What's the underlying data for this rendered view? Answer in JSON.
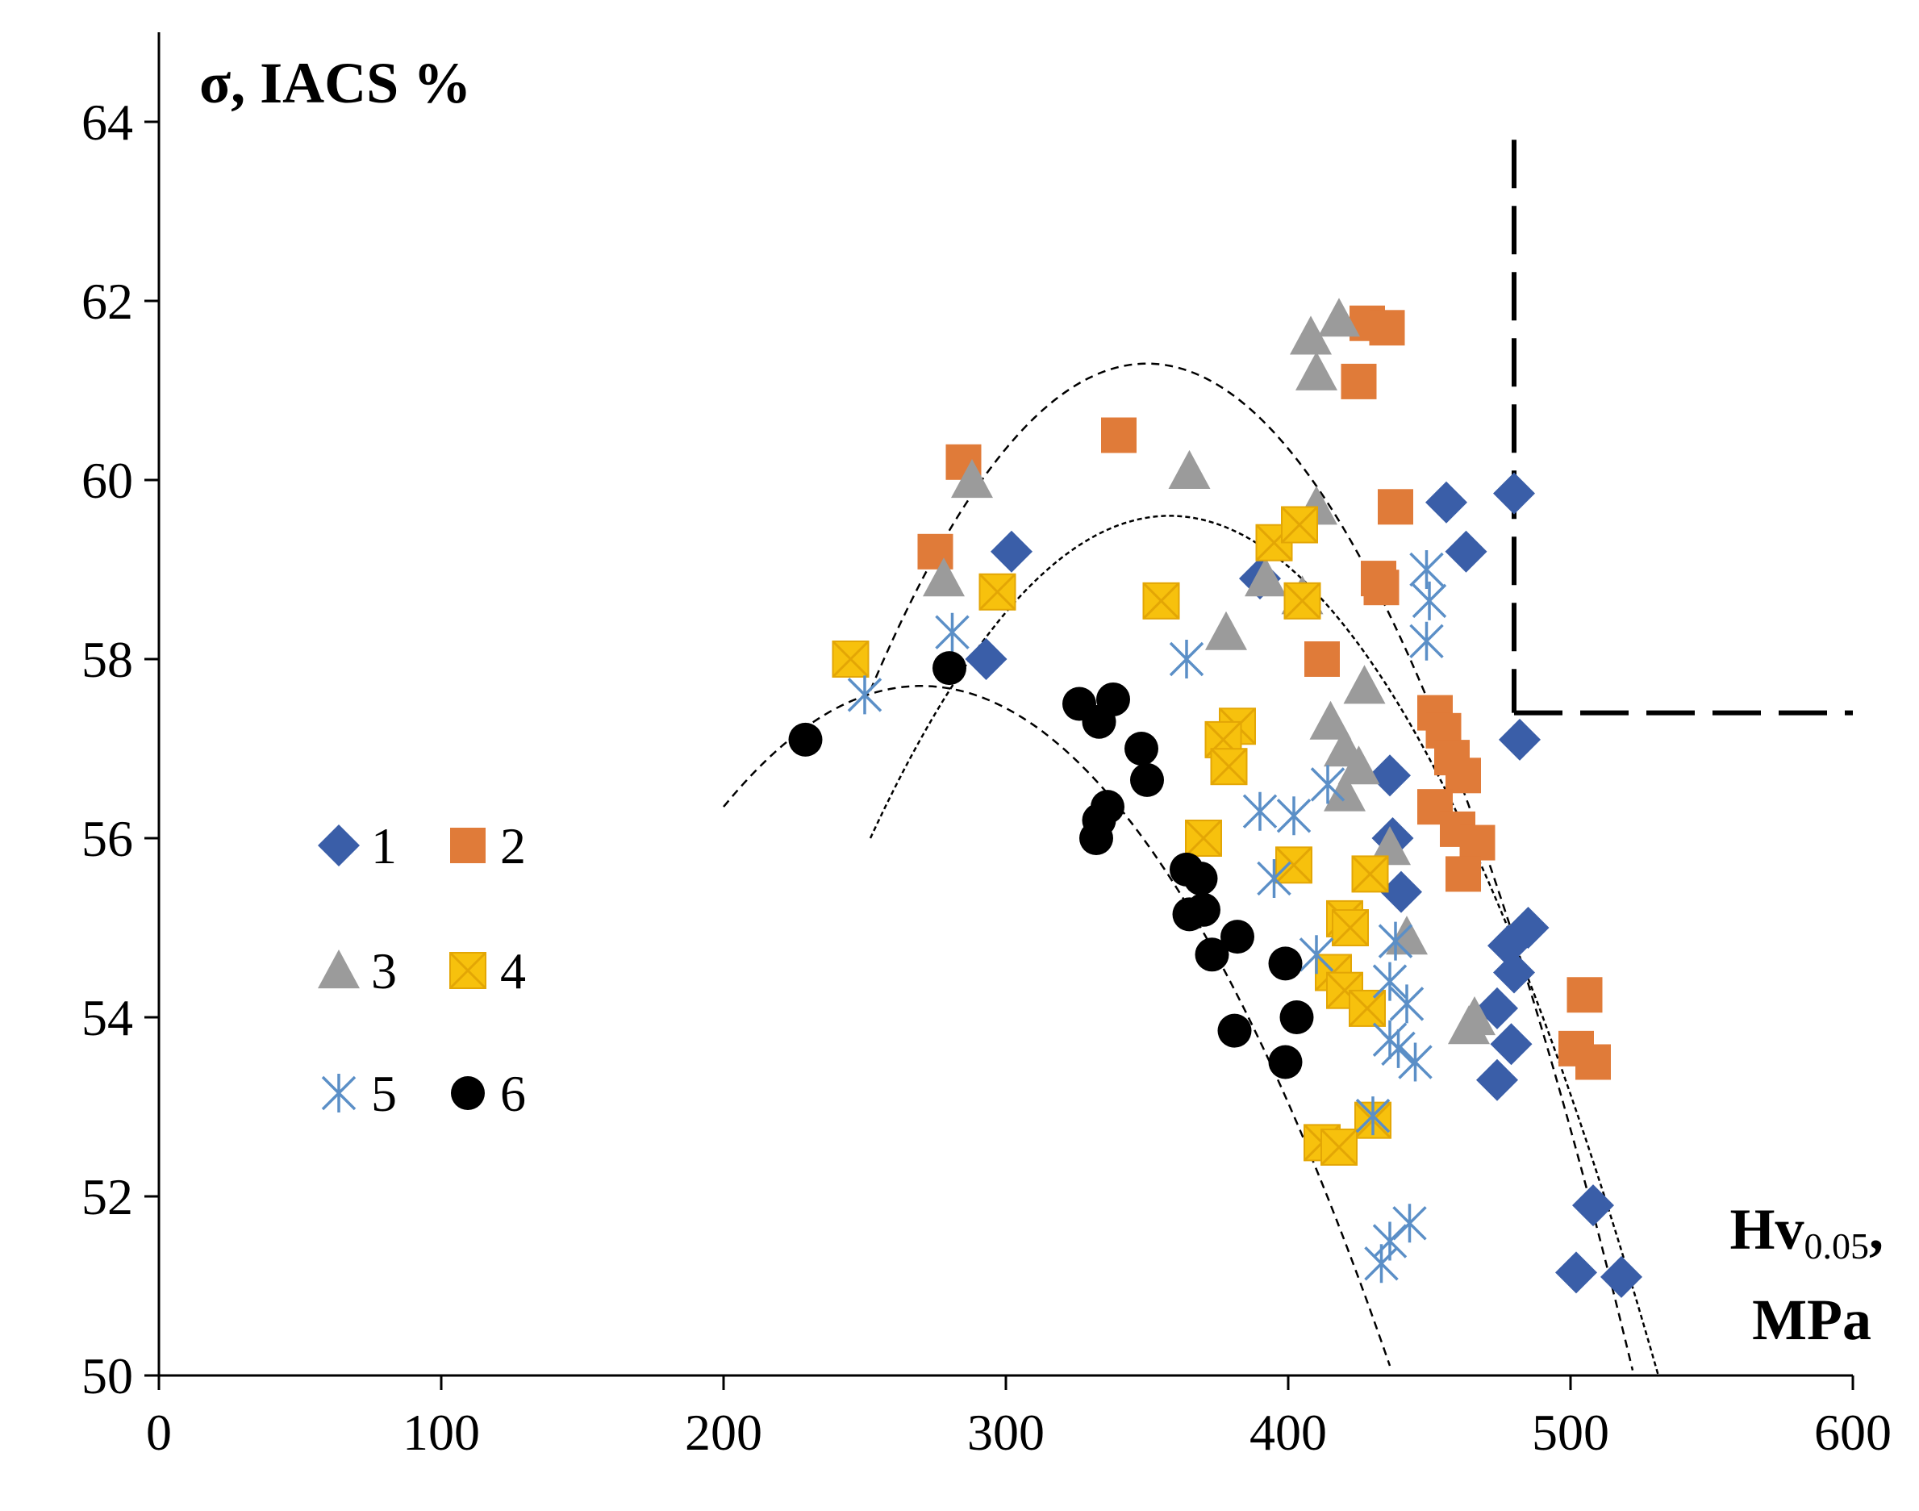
{
  "chart_data": {
    "type": "scatter",
    "ylabel": "σ, IACS %",
    "xlabel_main": "Hv",
    "xlabel_sub": "0.05",
    "xlabel_suffix": ",",
    "xlabel_unit": "MPa",
    "xlim": [
      0,
      600
    ],
    "ylim": [
      50,
      65
    ],
    "x_ticks": [
      0,
      100,
      200,
      300,
      400,
      500,
      600
    ],
    "y_ticks": [
      50,
      52,
      54,
      56,
      58,
      60,
      62,
      64
    ],
    "grid": false,
    "legend_position": "left-middle",
    "colors": {
      "s1": "#3a5ea8",
      "s2": "#e07b39",
      "s3": "#9b9b9b",
      "s4": "#f7c10d",
      "s4_stroke": "#e3a605",
      "s5": "#5b8fc7",
      "s6": "#000000"
    },
    "series": [
      {
        "name": "1",
        "marker": "diamond",
        "color": "#3a5ea8",
        "points": [
          [
            302,
            59.2
          ],
          [
            293,
            58.0
          ],
          [
            390,
            58.9
          ],
          [
            456,
            59.75
          ],
          [
            463,
            59.2
          ],
          [
            480,
            59.85
          ],
          [
            482,
            57.1
          ],
          [
            436,
            56.7
          ],
          [
            437,
            56.0
          ],
          [
            440,
            55.4
          ],
          [
            485,
            55.0
          ],
          [
            478,
            54.8
          ],
          [
            480,
            54.5
          ],
          [
            474,
            54.1
          ],
          [
            479,
            53.7
          ],
          [
            474,
            53.3
          ],
          [
            508,
            51.9
          ],
          [
            502,
            51.15
          ],
          [
            518,
            51.1
          ]
        ]
      },
      {
        "name": "2",
        "marker": "square",
        "color": "#e07b39",
        "points": [
          [
            285,
            60.2
          ],
          [
            275,
            59.2
          ],
          [
            340,
            60.5
          ],
          [
            428,
            61.75
          ],
          [
            435,
            61.7
          ],
          [
            425,
            61.1
          ],
          [
            438,
            59.7
          ],
          [
            432,
            58.9
          ],
          [
            433,
            58.8
          ],
          [
            412,
            58.0
          ],
          [
            452,
            57.4
          ],
          [
            455,
            57.2
          ],
          [
            458,
            56.9
          ],
          [
            462,
            56.7
          ],
          [
            452,
            56.35
          ],
          [
            460,
            56.1
          ],
          [
            467,
            55.95
          ],
          [
            462,
            55.6
          ],
          [
            505,
            54.25
          ],
          [
            502,
            53.65
          ],
          [
            508,
            53.5
          ]
        ]
      },
      {
        "name": "3",
        "marker": "triangle",
        "color": "#9b9b9b",
        "points": [
          [
            288,
            60.0
          ],
          [
            278,
            58.9
          ],
          [
            365,
            60.1
          ],
          [
            418,
            61.8
          ],
          [
            408,
            61.6
          ],
          [
            410,
            61.2
          ],
          [
            410,
            59.7
          ],
          [
            392,
            58.9
          ],
          [
            405,
            58.7
          ],
          [
            378,
            58.3
          ],
          [
            427,
            57.7
          ],
          [
            415,
            57.3
          ],
          [
            420,
            57.0
          ],
          [
            425,
            56.8
          ],
          [
            420,
            56.5
          ],
          [
            436,
            55.9
          ],
          [
            442,
            54.9
          ],
          [
            464,
            53.9
          ],
          [
            466,
            54.0
          ]
        ]
      },
      {
        "name": "4",
        "marker": "xsquare",
        "color": "#f7c10d",
        "points": [
          [
            245,
            58.0
          ],
          [
            297,
            58.75
          ],
          [
            355,
            58.65
          ],
          [
            395,
            59.3
          ],
          [
            404,
            59.5
          ],
          [
            405,
            58.65
          ],
          [
            382,
            57.25
          ],
          [
            377,
            57.1
          ],
          [
            379,
            56.8
          ],
          [
            370,
            56.0
          ],
          [
            402,
            55.7
          ],
          [
            429,
            55.6
          ],
          [
            420,
            55.1
          ],
          [
            422,
            55.0
          ],
          [
            416,
            54.5
          ],
          [
            420,
            54.3
          ],
          [
            428,
            54.1
          ],
          [
            430,
            52.85
          ],
          [
            412,
            52.6
          ],
          [
            418,
            52.55
          ]
        ]
      },
      {
        "name": "5",
        "marker": "star",
        "color": "#5b8fc7",
        "points": [
          [
            250,
            57.6
          ],
          [
            281,
            58.3
          ],
          [
            364,
            58.0
          ],
          [
            449,
            59.0
          ],
          [
            450,
            58.65
          ],
          [
            449,
            58.2
          ],
          [
            414,
            56.6
          ],
          [
            390,
            56.3
          ],
          [
            402,
            56.25
          ],
          [
            395,
            55.55
          ],
          [
            438,
            54.85
          ],
          [
            410,
            54.7
          ],
          [
            436,
            54.4
          ],
          [
            442,
            54.15
          ],
          [
            436,
            53.75
          ],
          [
            439,
            53.65
          ],
          [
            445,
            53.5
          ],
          [
            430,
            52.9
          ],
          [
            443,
            51.7
          ],
          [
            436,
            51.5
          ],
          [
            433,
            51.25
          ]
        ]
      },
      {
        "name": "6",
        "marker": "circle",
        "color": "#000000",
        "points": [
          [
            229,
            57.1
          ],
          [
            280,
            57.9
          ],
          [
            326,
            57.5
          ],
          [
            338,
            57.55
          ],
          [
            333,
            57.3
          ],
          [
            348,
            57.0
          ],
          [
            350,
            56.65
          ],
          [
            336,
            56.35
          ],
          [
            333,
            56.2
          ],
          [
            332,
            56.0
          ],
          [
            364,
            55.65
          ],
          [
            369,
            55.55
          ],
          [
            365,
            55.15
          ],
          [
            370,
            55.2
          ],
          [
            373,
            54.7
          ],
          [
            382,
            54.9
          ],
          [
            399,
            54.6
          ],
          [
            403,
            54.0
          ],
          [
            381,
            53.85
          ],
          [
            399,
            53.5
          ]
        ]
      }
    ],
    "trend_curves": [
      {
        "name": "upper-curve",
        "style": "dashed",
        "vertex": [
          350,
          61.3
        ],
        "through": [
          250,
          57.5
        ],
        "x_range": [
          252,
          528
        ]
      },
      {
        "name": "middle-curve",
        "style": "dotted",
        "vertex": [
          358,
          59.6
        ],
        "through": [
          252,
          56.0
        ],
        "x_range": [
          252,
          532
        ]
      },
      {
        "name": "lower-curve",
        "style": "dashed",
        "vertex": [
          270,
          57.7
        ],
        "through": [
          200,
          56.35
        ],
        "x_range": [
          200,
          436
        ]
      }
    ],
    "threshold_lines": [
      {
        "name": "vertical-threshold",
        "x": 480,
        "y_from": 57.4,
        "y_to": 63.8
      },
      {
        "name": "horizontal-threshold",
        "y": 57.4,
        "x_from": 480,
        "x_to": 600
      }
    ],
    "legend_entries": [
      "1",
      "2",
      "3",
      "4",
      "5",
      "6"
    ]
  }
}
